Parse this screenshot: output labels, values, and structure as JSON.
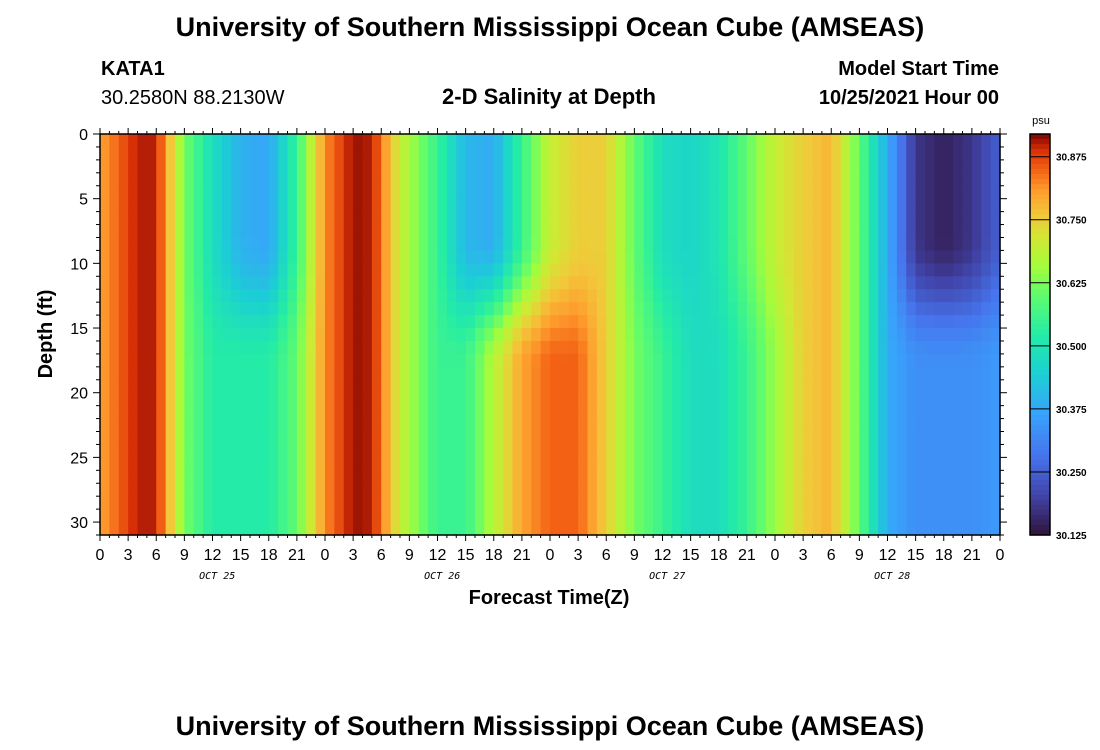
{
  "header": {
    "title": "University of Southern Mississippi Ocean Cube (AMSEAS)",
    "station": "KATA1",
    "coords": "30.2580N  88.2130W",
    "subtitle": "2-D Salinity at Depth",
    "model_label": "Model Start Time",
    "model_time": "10/25/2021 Hour 00"
  },
  "footer": {
    "title": "University of Southern Mississippi Ocean Cube (AMSEAS)"
  },
  "chart_data": {
    "type": "heatmap",
    "title": "2-D Salinity at Depth",
    "xlabel": "Forecast Time(Z)",
    "ylabel": "Depth (ft)",
    "x_hours": [
      0,
      96
    ],
    "x_tick_labels": [
      "0",
      "3",
      "6",
      "9",
      "12",
      "15",
      "18",
      "21",
      "0",
      "3",
      "6",
      "9",
      "12",
      "15",
      "18",
      "21",
      "0",
      "3",
      "6",
      "9",
      "12",
      "15",
      "18",
      "21",
      "0",
      "3",
      "6",
      "9",
      "12",
      "15",
      "18",
      "21",
      "0"
    ],
    "date_labels": [
      "OCT 25",
      "OCT 26",
      "OCT 27",
      "OCT 28"
    ],
    "y_ticks": [
      0,
      5,
      10,
      15,
      20,
      25,
      30
    ],
    "y_range": [
      0,
      31
    ],
    "colorbar": {
      "unit": "psu",
      "range": [
        30.125,
        30.92
      ],
      "ticks": [
        "30.875",
        "30.750",
        "30.625",
        "30.500",
        "30.375",
        "30.250",
        "30.125"
      ],
      "tick_values": [
        30.875,
        30.75,
        30.625,
        30.5,
        30.375,
        30.25,
        30.125
      ]
    },
    "surface_salinity": {
      "hours": [
        0,
        4,
        6,
        9,
        12,
        15,
        18,
        21,
        24,
        27,
        29,
        32,
        36,
        39,
        42,
        45,
        48,
        51,
        54,
        57,
        60,
        63,
        66,
        69,
        72,
        75,
        78,
        81,
        84,
        87,
        90,
        93,
        96
      ],
      "values": [
        30.8,
        30.9,
        30.9,
        30.62,
        30.48,
        30.39,
        30.37,
        30.55,
        30.82,
        30.91,
        30.9,
        30.7,
        30.55,
        30.4,
        30.38,
        30.55,
        30.7,
        30.75,
        30.75,
        30.6,
        30.48,
        30.46,
        30.5,
        30.6,
        30.7,
        30.75,
        30.78,
        30.6,
        30.38,
        30.18,
        30.15,
        30.18,
        30.25
      ]
    },
    "bottom_salinity": {
      "hours": [
        0,
        4,
        6,
        9,
        12,
        15,
        18,
        21,
        24,
        27,
        29,
        32,
        36,
        39,
        42,
        45,
        48,
        51,
        54,
        57,
        60,
        63,
        66,
        69,
        72,
        75,
        78,
        81,
        84,
        87,
        90,
        93,
        96
      ],
      "values": [
        30.8,
        30.9,
        30.9,
        30.62,
        30.52,
        30.52,
        30.52,
        30.6,
        30.82,
        30.91,
        30.9,
        30.7,
        30.55,
        30.55,
        30.68,
        30.8,
        30.85,
        30.85,
        30.75,
        30.62,
        30.55,
        30.48,
        30.48,
        30.55,
        30.65,
        30.75,
        30.78,
        30.6,
        30.38,
        30.33,
        30.33,
        30.33,
        30.35
      ]
    }
  }
}
